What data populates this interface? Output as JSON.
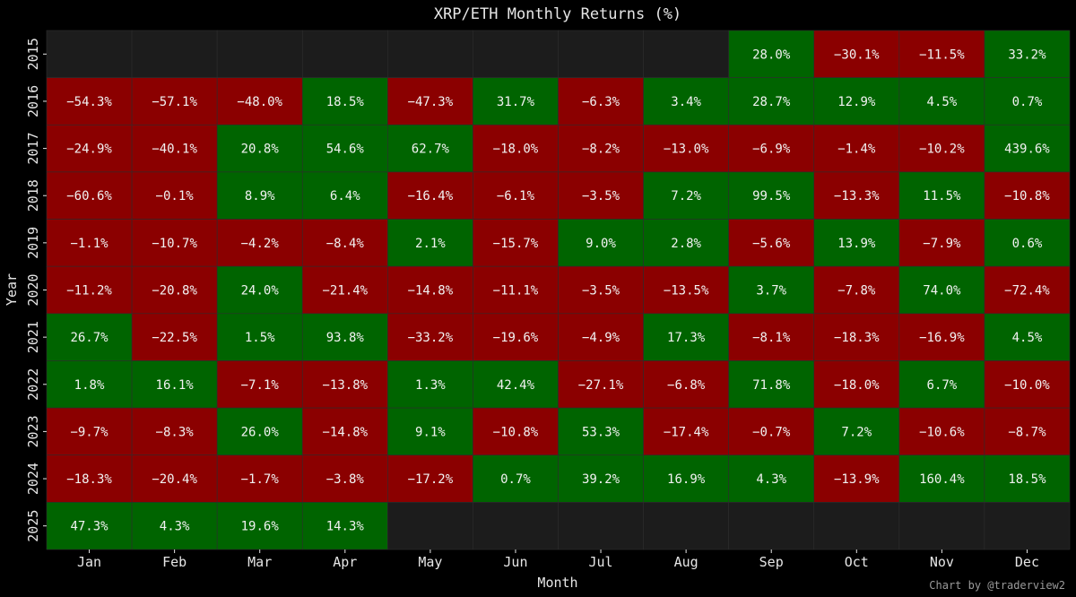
{
  "chart_data": {
    "type": "heatmap",
    "title": "XRP/ETH Monthly Returns (%)",
    "xlabel": "Month",
    "ylabel": "Year",
    "x": [
      "Jan",
      "Feb",
      "Mar",
      "Apr",
      "May",
      "Jun",
      "Jul",
      "Aug",
      "Sep",
      "Oct",
      "Nov",
      "Dec"
    ],
    "y": [
      "2015",
      "2016",
      "2017",
      "2018",
      "2019",
      "2020",
      "2021",
      "2022",
      "2023",
      "2024",
      "2025"
    ],
    "values": [
      [
        null,
        null,
        null,
        null,
        null,
        null,
        null,
        null,
        28.0,
        -30.1,
        -11.5,
        33.2
      ],
      [
        -54.3,
        -57.1,
        -48.0,
        18.5,
        -47.3,
        31.7,
        -6.3,
        3.4,
        28.7,
        12.9,
        4.5,
        0.7
      ],
      [
        -24.9,
        -40.1,
        20.8,
        54.6,
        62.7,
        -18.0,
        -8.2,
        -13.0,
        -6.9,
        -1.4,
        -10.2,
        439.6
      ],
      [
        -60.6,
        -0.1,
        8.9,
        6.4,
        -16.4,
        -6.1,
        -3.5,
        7.2,
        99.5,
        -13.3,
        11.5,
        -10.8
      ],
      [
        -1.1,
        -10.7,
        -4.2,
        -8.4,
        2.1,
        -15.7,
        9.0,
        2.8,
        -5.6,
        13.9,
        -7.9,
        0.6
      ],
      [
        -11.2,
        -20.8,
        24.0,
        -21.4,
        -14.8,
        -11.1,
        -3.5,
        -13.5,
        3.7,
        -7.8,
        74.0,
        -72.4
      ],
      [
        26.7,
        -22.5,
        1.5,
        93.8,
        -33.2,
        -19.6,
        -4.9,
        17.3,
        -8.1,
        -18.3,
        -16.9,
        4.5
      ],
      [
        1.8,
        16.1,
        -7.1,
        -13.8,
        1.3,
        42.4,
        -27.1,
        -6.8,
        71.8,
        -18.0,
        6.7,
        -10.0
      ],
      [
        -9.7,
        -8.3,
        26.0,
        -14.8,
        9.1,
        -10.8,
        53.3,
        -17.4,
        -0.7,
        7.2,
        -10.6,
        -8.7
      ],
      [
        -18.3,
        -20.4,
        -1.7,
        -3.8,
        -17.2,
        0.7,
        39.2,
        16.9,
        4.3,
        -13.9,
        160.4,
        18.5
      ],
      [
        47.3,
        4.3,
        19.6,
        14.3,
        null,
        null,
        null,
        null,
        null,
        null,
        null,
        null
      ]
    ],
    "value_suffix": "%",
    "colors": {
      "positive": "#006400",
      "negative": "#8b0000",
      "missing": "#1c1c1c",
      "background": "#000000",
      "text": "#e6e6e6"
    },
    "grid": true,
    "legend": "none"
  },
  "credit": "Chart by @traderview2"
}
